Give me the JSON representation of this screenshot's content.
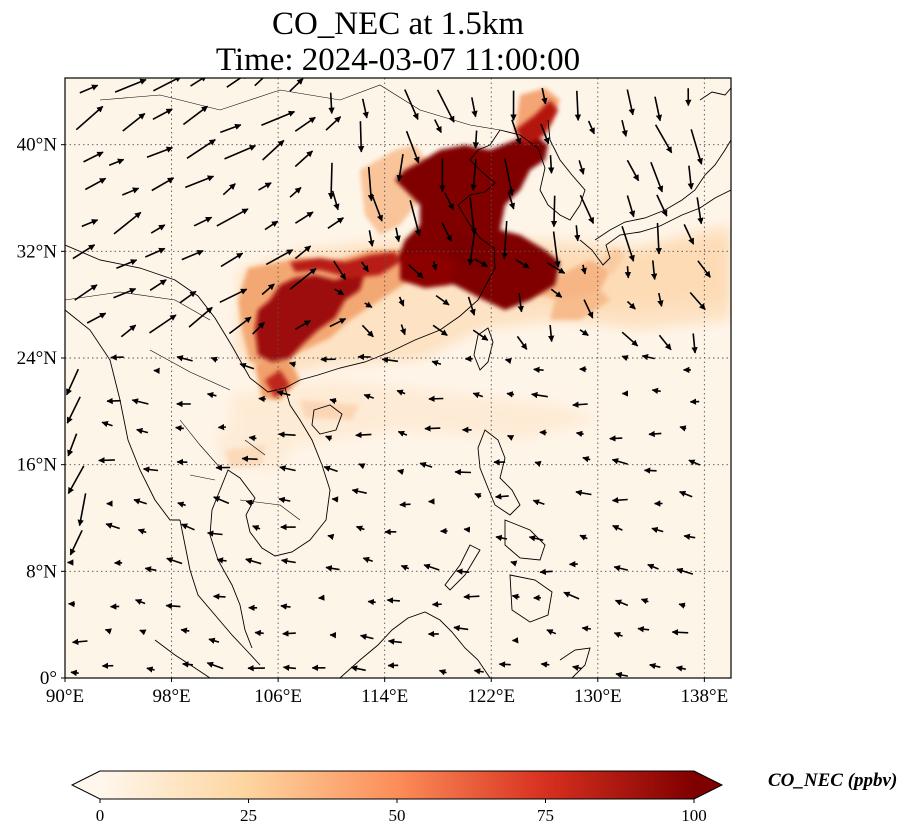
{
  "title": {
    "line1": "CO_NEC at 1.5km",
    "line2": "Time: 2024-03-07 11:00:00"
  },
  "map": {
    "projection": "PlateCarree",
    "lon_range": [
      90,
      140
    ],
    "lat_range": [
      0,
      45
    ],
    "lon_ticks": [
      {
        "value": 90,
        "label": "90°E"
      },
      {
        "value": 98,
        "label": "98°E"
      },
      {
        "value": 106,
        "label": "106°E"
      },
      {
        "value": 114,
        "label": "114°E"
      },
      {
        "value": 122,
        "label": "122°E"
      },
      {
        "value": 130,
        "label": "130°E"
      },
      {
        "value": 138,
        "label": "138°E"
      }
    ],
    "lat_ticks": [
      {
        "value": 0,
        "label": "0°"
      },
      {
        "value": 8,
        "label": "8°N"
      },
      {
        "value": 16,
        "label": "16°N"
      },
      {
        "value": 24,
        "label": "24°N"
      },
      {
        "value": 32,
        "label": "32°N"
      },
      {
        "value": 40,
        "label": "40°N"
      }
    ],
    "gridlines": "dotted",
    "field": "CO_NEC concentration at 1.5km (ppbv)",
    "plume_regions": [
      {
        "lon": 119.0,
        "lat": 36.5,
        "value": 100
      },
      {
        "lon": 122.5,
        "lat": 38.5,
        "value": 100
      },
      {
        "lon": 119.5,
        "lat": 32.5,
        "value": 100
      },
      {
        "lon": 123.5,
        "lat": 31.0,
        "value": 100
      },
      {
        "lon": 106.0,
        "lat": 26.5,
        "value": 95
      },
      {
        "lon": 108.0,
        "lat": 25.5,
        "value": 90
      },
      {
        "lon": 110.5,
        "lat": 29.5,
        "value": 75
      },
      {
        "lon": 113.0,
        "lat": 31.0,
        "value": 70
      },
      {
        "lon": 125.5,
        "lat": 41.5,
        "value": 70
      },
      {
        "lon": 127.0,
        "lat": 28.0,
        "value": 45
      },
      {
        "lon": 112.0,
        "lat": 20.0,
        "value": 30
      },
      {
        "lon": 134.0,
        "lat": 27.0,
        "value": 20
      },
      {
        "lon": 118.0,
        "lat": 18.0,
        "value": 15
      }
    ]
  },
  "colorbar": {
    "label": "CO_NEC (ppbv)",
    "min": 0,
    "max": 100,
    "ticks": [
      "0",
      "25",
      "50",
      "75",
      "100"
    ],
    "colormap": "OrRd",
    "colors": [
      "#fff7ec",
      "#fdd49e",
      "#fc8d59",
      "#d7301f",
      "#7f0000"
    ],
    "extend": "both"
  }
}
